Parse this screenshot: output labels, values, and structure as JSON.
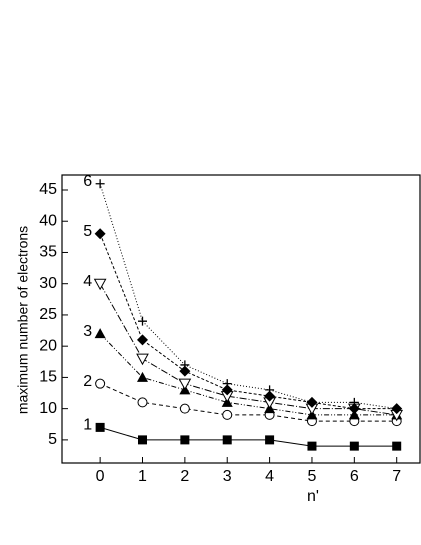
{
  "chart_data": {
    "type": "line",
    "x": [
      0,
      1,
      2,
      3,
      4,
      5,
      6,
      7
    ],
    "xlabel": "n'",
    "ylabel": "maximum number of electrons",
    "xlim": [
      -0.9,
      7.55
    ],
    "xticks": [
      0,
      1,
      2,
      3,
      4,
      5,
      6,
      7
    ],
    "ylim": [
      1.3,
      47.4
    ],
    "yticks": [
      5,
      10,
      15,
      20,
      25,
      30,
      35,
      40,
      45
    ],
    "series": [
      {
        "name": "1",
        "color": "#000000",
        "marker": "square",
        "dash": "",
        "values": [
          7,
          5,
          5,
          5,
          5,
          4,
          4,
          4
        ]
      },
      {
        "name": "2",
        "color": "#000000",
        "marker": "circle",
        "dash": "4 3",
        "values": [
          14,
          11,
          10,
          9,
          9,
          8,
          8,
          8
        ]
      },
      {
        "name": "3",
        "color": "#000000",
        "marker": "triangle",
        "dash": "5 2 1 2 1 2",
        "values": [
          22,
          15,
          13,
          11,
          10,
          9,
          9,
          9
        ]
      },
      {
        "name": "4",
        "color": "#000000",
        "marker": "triangle-down",
        "dash": "7 2 1 2",
        "values": [
          30,
          18,
          14,
          12,
          11,
          10,
          10,
          9
        ]
      },
      {
        "name": "5",
        "color": "#000000",
        "marker": "diamond",
        "dash": "3 2",
        "values": [
          38,
          21,
          16,
          13,
          12,
          11,
          10,
          10
        ]
      },
      {
        "name": "6",
        "color": "#000000",
        "marker": "plus",
        "dash": "1 2",
        "values": [
          46,
          24,
          17,
          14,
          13,
          11,
          11,
          10
        ]
      }
    ]
  }
}
